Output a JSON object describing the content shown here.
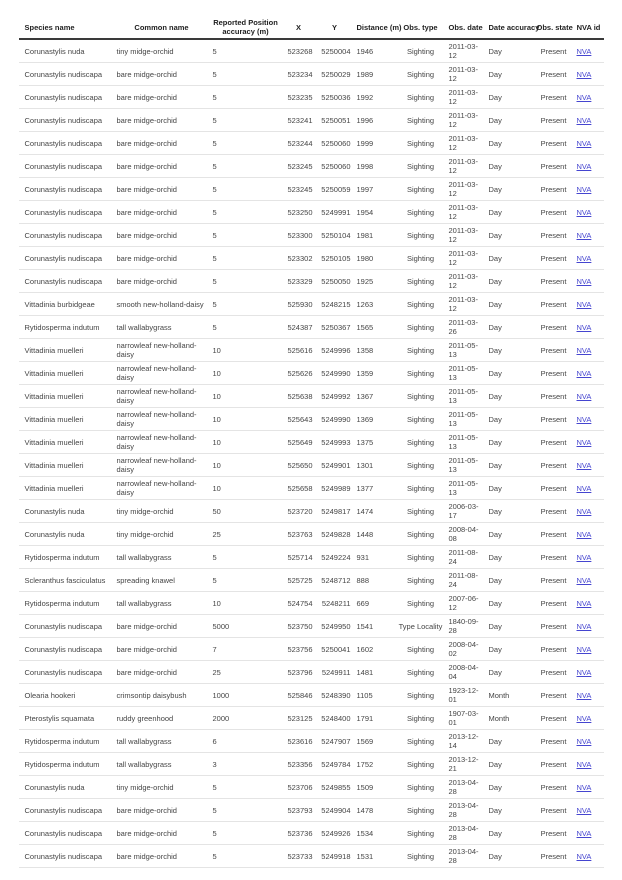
{
  "table": {
    "columns": [
      {
        "key": "species",
        "label": "Species name"
      },
      {
        "key": "common",
        "label": "Common name"
      },
      {
        "key": "accuracy",
        "label": "Reported Position accuracy (m)"
      },
      {
        "key": "x",
        "label": "X"
      },
      {
        "key": "y",
        "label": "Y"
      },
      {
        "key": "distance",
        "label": "Distance (m)"
      },
      {
        "key": "obs_type",
        "label": "Obs. type"
      },
      {
        "key": "obs_date",
        "label": "Obs. date"
      },
      {
        "key": "date_accuracy",
        "label": "Date accuracy"
      },
      {
        "key": "obs_state",
        "label": "Obs. state"
      },
      {
        "key": "nva_id",
        "label": "NVA id"
      }
    ],
    "link_color": "#4545d0",
    "rows": [
      [
        "Corunastylis nuda",
        "tiny midge-orchid",
        "5",
        "523268",
        "5250004",
        "1946",
        "Sighting",
        "2011-03-12",
        "Day",
        "Present",
        "NVA"
      ],
      [
        "Corunastylis nudiscapa",
        "bare midge-orchid",
        "5",
        "523234",
        "5250029",
        "1989",
        "Sighting",
        "2011-03-12",
        "Day",
        "Present",
        "NVA"
      ],
      [
        "Corunastylis nudiscapa",
        "bare midge-orchid",
        "5",
        "523235",
        "5250036",
        "1992",
        "Sighting",
        "2011-03-12",
        "Day",
        "Present",
        "NVA"
      ],
      [
        "Corunastylis nudiscapa",
        "bare midge-orchid",
        "5",
        "523241",
        "5250051",
        "1996",
        "Sighting",
        "2011-03-12",
        "Day",
        "Present",
        "NVA"
      ],
      [
        "Corunastylis nudiscapa",
        "bare midge-orchid",
        "5",
        "523244",
        "5250060",
        "1999",
        "Sighting",
        "2011-03-12",
        "Day",
        "Present",
        "NVA"
      ],
      [
        "Corunastylis nudiscapa",
        "bare midge-orchid",
        "5",
        "523245",
        "5250060",
        "1998",
        "Sighting",
        "2011-03-12",
        "Day",
        "Present",
        "NVA"
      ],
      [
        "Corunastylis nudiscapa",
        "bare midge-orchid",
        "5",
        "523245",
        "5250059",
        "1997",
        "Sighting",
        "2011-03-12",
        "Day",
        "Present",
        "NVA"
      ],
      [
        "Corunastylis nudiscapa",
        "bare midge-orchid",
        "5",
        "523250",
        "5249991",
        "1954",
        "Sighting",
        "2011-03-12",
        "Day",
        "Present",
        "NVA"
      ],
      [
        "Corunastylis nudiscapa",
        "bare midge-orchid",
        "5",
        "523300",
        "5250104",
        "1981",
        "Sighting",
        "2011-03-12",
        "Day",
        "Present",
        "NVA"
      ],
      [
        "Corunastylis nudiscapa",
        "bare midge-orchid",
        "5",
        "523302",
        "5250105",
        "1980",
        "Sighting",
        "2011-03-12",
        "Day",
        "Present",
        "NVA"
      ],
      [
        "Corunastylis nudiscapa",
        "bare midge-orchid",
        "5",
        "523329",
        "5250050",
        "1925",
        "Sighting",
        "2011-03-12",
        "Day",
        "Present",
        "NVA"
      ],
      [
        "Vittadinia burbidgeae",
        "smooth new-holland-daisy",
        "5",
        "525930",
        "5248215",
        "1263",
        "Sighting",
        "2011-03-12",
        "Day",
        "Present",
        "NVA"
      ],
      [
        "Rytidosperma indutum",
        "tall wallabygrass",
        "5",
        "524387",
        "5250367",
        "1565",
        "Sighting",
        "2011-03-26",
        "Day",
        "Present",
        "NVA"
      ],
      [
        "Vittadinia muelleri",
        "narrowleaf new-holland-daisy",
        "10",
        "525616",
        "5249996",
        "1358",
        "Sighting",
        "2011-05-13",
        "Day",
        "Present",
        "NVA"
      ],
      [
        "Vittadinia muelleri",
        "narrowleaf new-holland-daisy",
        "10",
        "525626",
        "5249990",
        "1359",
        "Sighting",
        "2011-05-13",
        "Day",
        "Present",
        "NVA"
      ],
      [
        "Vittadinia muelleri",
        "narrowleaf new-holland-daisy",
        "10",
        "525638",
        "5249992",
        "1367",
        "Sighting",
        "2011-05-13",
        "Day",
        "Present",
        "NVA"
      ],
      [
        "Vittadinia muelleri",
        "narrowleaf new-holland-daisy",
        "10",
        "525643",
        "5249990",
        "1369",
        "Sighting",
        "2011-05-13",
        "Day",
        "Present",
        "NVA"
      ],
      [
        "Vittadinia muelleri",
        "narrowleaf new-holland-daisy",
        "10",
        "525649",
        "5249993",
        "1375",
        "Sighting",
        "2011-05-13",
        "Day",
        "Present",
        "NVA"
      ],
      [
        "Vittadinia muelleri",
        "narrowleaf new-holland-daisy",
        "10",
        "525650",
        "5249901",
        "1301",
        "Sighting",
        "2011-05-13",
        "Day",
        "Present",
        "NVA"
      ],
      [
        "Vittadinia muelleri",
        "narrowleaf new-holland-daisy",
        "10",
        "525658",
        "5249989",
        "1377",
        "Sighting",
        "2011-05-13",
        "Day",
        "Present",
        "NVA"
      ],
      [
        "Corunastylis nuda",
        "tiny midge-orchid",
        "50",
        "523720",
        "5249817",
        "1474",
        "Sighting",
        "2006-03-17",
        "Day",
        "Present",
        "NVA"
      ],
      [
        "Corunastylis nuda",
        "tiny midge-orchid",
        "25",
        "523763",
        "5249828",
        "1448",
        "Sighting",
        "2008-04-08",
        "Day",
        "Present",
        "NVA"
      ],
      [
        "Rytidosperma indutum",
        "tall wallabygrass",
        "5",
        "525714",
        "5249224",
        "931",
        "Sighting",
        "2011-08-24",
        "Day",
        "Present",
        "NVA"
      ],
      [
        "Scleranthus fasciculatus",
        "spreading knawel",
        "5",
        "525725",
        "5248712",
        "888",
        "Sighting",
        "2011-08-24",
        "Day",
        "Present",
        "NVA"
      ],
      [
        "Rytidosperma indutum",
        "tall wallabygrass",
        "10",
        "524754",
        "5248211",
        "669",
        "Sighting",
        "2007-06-12",
        "Day",
        "Present",
        "NVA"
      ],
      [
        "Corunastylis nudiscapa",
        "bare midge-orchid",
        "5000",
        "523750",
        "5249950",
        "1541",
        "Type Locality",
        "1840-09-28",
        "Day",
        "Present",
        "NVA"
      ],
      [
        "Corunastylis nudiscapa",
        "bare midge-orchid",
        "7",
        "523756",
        "5250041",
        "1602",
        "Sighting",
        "2008-04-02",
        "Day",
        "Present",
        "NVA"
      ],
      [
        "Corunastylis nudiscapa",
        "bare midge-orchid",
        "25",
        "523796",
        "5249911",
        "1481",
        "Sighting",
        "2008-04-04",
        "Day",
        "Present",
        "NVA"
      ],
      [
        "Olearia hookeri",
        "crimsontip daisybush",
        "1000",
        "525846",
        "5248390",
        "1105",
        "Sighting",
        "1923-12-01",
        "Month",
        "Present",
        "NVA"
      ],
      [
        "Pterostylis squamata",
        "ruddy greenhood",
        "2000",
        "523125",
        "5248400",
        "1791",
        "Sighting",
        "1907-03-01",
        "Month",
        "Present",
        "NVA"
      ],
      [
        "Rytidosperma indutum",
        "tall wallabygrass",
        "6",
        "523616",
        "5247907",
        "1569",
        "Sighting",
        "2013-12-14",
        "Day",
        "Present",
        "NVA"
      ],
      [
        "Rytidosperma indutum",
        "tall wallabygrass",
        "3",
        "523356",
        "5249784",
        "1752",
        "Sighting",
        "2013-12-21",
        "Day",
        "Present",
        "NVA"
      ],
      [
        "Corunastylis nuda",
        "tiny midge-orchid",
        "5",
        "523706",
        "5249855",
        "1509",
        "Sighting",
        "2013-04-28",
        "Day",
        "Present",
        "NVA"
      ],
      [
        "Corunastylis nudiscapa",
        "bare midge-orchid",
        "5",
        "523793",
        "5249904",
        "1478",
        "Sighting",
        "2013-04-28",
        "Day",
        "Present",
        "NVA"
      ],
      [
        "Corunastylis nudiscapa",
        "bare midge-orchid",
        "5",
        "523736",
        "5249926",
        "1534",
        "Sighting",
        "2013-04-28",
        "Day",
        "Present",
        "NVA"
      ],
      [
        "Corunastylis nudiscapa",
        "bare midge-orchid",
        "5",
        "523733",
        "5249918",
        "1531",
        "Sighting",
        "2013-04-28",
        "Day",
        "Present",
        "NVA"
      ]
    ]
  }
}
